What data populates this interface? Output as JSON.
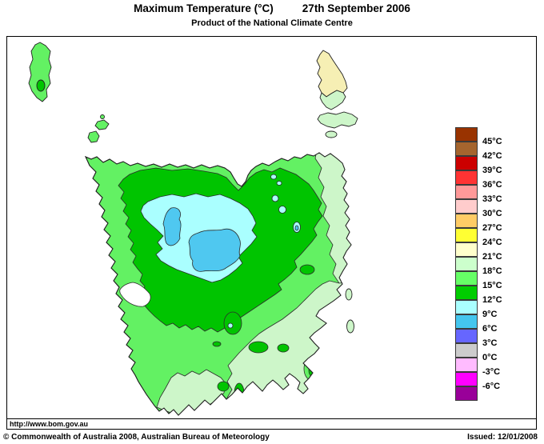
{
  "header": {
    "title_left": "Maximum Temperature (°C)",
    "title_right": "27th September 2006",
    "subtitle": "Product of the National Climate Centre"
  },
  "legend": {
    "bands": [
      {
        "color": "#993300"
      },
      {
        "color": "#A5652E"
      },
      {
        "color": "#CC0000"
      },
      {
        "color": "#FF3333"
      },
      {
        "color": "#FF9999"
      },
      {
        "color": "#FFCCCC"
      },
      {
        "color": "#FFCC66"
      },
      {
        "color": "#FFFF33"
      },
      {
        "color": "#FFFFCC"
      },
      {
        "color": "#CCFFCC"
      },
      {
        "color": "#66FF66"
      },
      {
        "color": "#00CC00"
      },
      {
        "color": "#AAFFFF"
      },
      {
        "color": "#44C6EE"
      },
      {
        "color": "#6666FF"
      },
      {
        "color": "#CCCCCC"
      },
      {
        "color": "#FFBBFF"
      },
      {
        "color": "#FF00FF"
      },
      {
        "color": "#990099"
      }
    ],
    "boundary_labels": [
      "45°C",
      "42°C",
      "39°C",
      "36°C",
      "33°C",
      "30°C",
      "27°C",
      "24°C",
      "21°C",
      "18°C",
      "15°C",
      "12°C",
      "9°C",
      "6°C",
      "3°C",
      "0°C",
      "-3°C",
      "-6°C"
    ]
  },
  "map": {
    "region": "Tasmania",
    "visible_bands": [
      "21-24°C",
      "18-21°C",
      "15-18°C",
      "12-15°C",
      "9-12°C",
      "6-9°C"
    ],
    "fill_colors": {
      "sea": "#FFFFFF",
      "c21_24": "#F6EFB4",
      "c18_21": "#CDF6C9",
      "c15_18": "#63F163",
      "c12_15": "#00C400",
      "c9_12": "#AAFFFF",
      "c6_9": "#4FC8F0"
    }
  },
  "footer": {
    "url": "http://www.bom.gov.au",
    "copyright": "© Commonwealth of Australia 2008, Australian Bureau of Meteorology",
    "issued": "Issued: 12/01/2008"
  }
}
